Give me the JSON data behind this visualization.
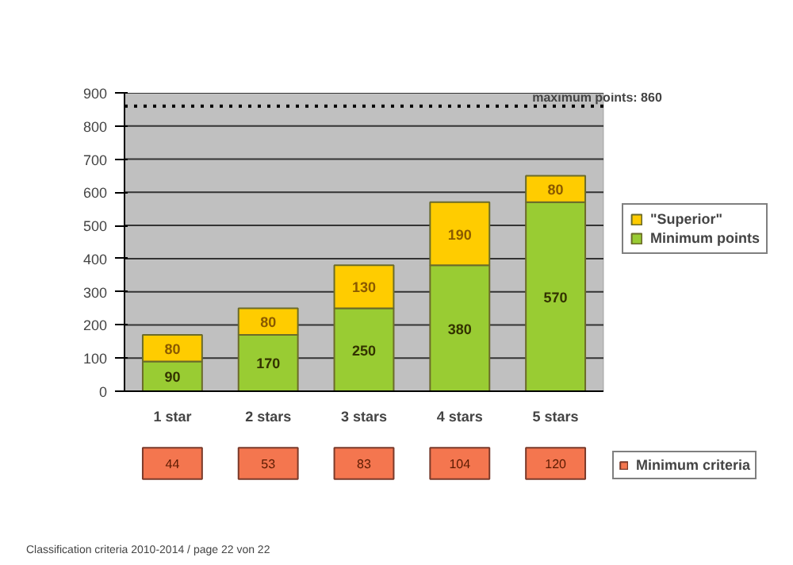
{
  "chart_data": [
    {
      "type": "bar",
      "stacked": true,
      "categories": [
        "1 star",
        "2 stars",
        "3 stars",
        "4 stars",
        "5 stars"
      ],
      "series": [
        {
          "name": "Minimum points",
          "color": "#99cc33",
          "values": [
            90,
            170,
            250,
            380,
            570
          ]
        },
        {
          "name": "\"Superior\"",
          "color": "#ffcc00",
          "values": [
            80,
            80,
            130,
            190,
            80
          ]
        }
      ],
      "ylim": [
        0,
        900
      ],
      "yticks": [
        0,
        100,
        200,
        300,
        400,
        500,
        600,
        700,
        800,
        900
      ],
      "grid": "y",
      "legend": "right",
      "data_labels": true,
      "ref_lines": [
        {
          "axis": "y",
          "value": 860,
          "label": "maximum points: 860",
          "color": "#000000",
          "line_style": "dotted"
        }
      ]
    },
    {
      "type": "other",
      "series": [
        {
          "name": "Minimum criteria",
          "color": "#f4764f",
          "values": [
            44,
            53,
            83,
            104,
            120
          ]
        }
      ],
      "data_labels": true,
      "legend": "right",
      "annotations": [
        "Classification criteria 2010-2014 / page 22 von 22"
      ]
    }
  ]
}
